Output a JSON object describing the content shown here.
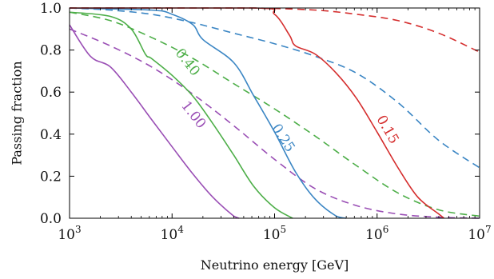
{
  "chart_data": {
    "type": "line",
    "xlabel": "Neutrino energy [GeV]",
    "ylabel": "Passing fraction",
    "xscale": "log",
    "xlim": [
      1000,
      10000000
    ],
    "ylim": [
      0.0,
      1.0
    ],
    "xticks": [
      {
        "value": 1000,
        "base": "10",
        "exp": "3"
      },
      {
        "value": 10000,
        "base": "10",
        "exp": "4"
      },
      {
        "value": 100000,
        "base": "10",
        "exp": "5"
      },
      {
        "value": 1000000,
        "base": "10",
        "exp": "6"
      },
      {
        "value": 10000000,
        "base": "10",
        "exp": "7"
      }
    ],
    "yticks": [
      {
        "value": 0.0,
        "label": "0.0"
      },
      {
        "value": 0.2,
        "label": "0.2"
      },
      {
        "value": 0.4,
        "label": "0.4"
      },
      {
        "value": 0.6,
        "label": "0.6"
      },
      {
        "value": 0.8,
        "label": "0.8"
      },
      {
        "value": 1.0,
        "label": "1.0"
      }
    ],
    "grid": false,
    "legend": "none",
    "series": [
      {
        "color": "#9A4FB5",
        "dash": "solid",
        "curve_label": "1.00",
        "label_x": 16000,
        "label_y": 0.49,
        "label_angle": 52,
        "x": [
          1000,
          1600,
          2500,
          4000,
          6300,
          10000,
          16000,
          25000,
          40000,
          45000
        ],
        "y": [
          0.92,
          0.77,
          0.72,
          0.6,
          0.47,
          0.34,
          0.21,
          0.1,
          0.01,
          0.0
        ]
      },
      {
        "color": "#9A4FB5",
        "dash": "dashed",
        "x": [
          1000,
          2500,
          6300,
          16000,
          40000,
          100000,
          250000,
          630000,
          1600000,
          4000000,
          10000000
        ],
        "y": [
          0.9,
          0.82,
          0.72,
          0.59,
          0.44,
          0.28,
          0.14,
          0.06,
          0.02,
          0.005,
          0.0
        ]
      },
      {
        "color": "#4DAE48",
        "dash": "solid",
        "curve_label": "0.40",
        "label_x": 14000,
        "label_y": 0.74,
        "label_angle": 52,
        "x": [
          1000,
          2500,
          4000,
          5500,
          6300,
          10000,
          16000,
          25000,
          40000,
          63000,
          100000,
          150000
        ],
        "y": [
          0.98,
          0.96,
          0.9,
          0.78,
          0.76,
          0.68,
          0.58,
          0.45,
          0.3,
          0.15,
          0.05,
          0.0
        ]
      },
      {
        "color": "#4DAE48",
        "dash": "dashed",
        "x": [
          1000,
          2500,
          6300,
          16000,
          40000,
          100000,
          250000,
          630000,
          1600000,
          4000000,
          10000000
        ],
        "y": [
          0.98,
          0.94,
          0.86,
          0.76,
          0.64,
          0.52,
          0.39,
          0.25,
          0.12,
          0.04,
          0.01
        ]
      },
      {
        "color": "#3B86C4",
        "dash": "solid",
        "curve_label": "0.25",
        "label_x": 120000,
        "label_y": 0.38,
        "label_angle": 57,
        "x": [
          1000,
          6300,
          10000,
          16000,
          20000,
          40000,
          63000,
          100000,
          160000,
          250000,
          400000,
          500000
        ],
        "y": [
          1.0,
          0.99,
          0.97,
          0.92,
          0.85,
          0.74,
          0.58,
          0.41,
          0.22,
          0.09,
          0.01,
          0.0
        ]
      },
      {
        "color": "#3B86C4",
        "dash": "dashed",
        "x": [
          1000,
          2500,
          6300,
          16000,
          40000,
          100000,
          250000,
          630000,
          1600000,
          4000000,
          10000000
        ],
        "y": [
          1.0,
          0.99,
          0.97,
          0.93,
          0.88,
          0.83,
          0.77,
          0.69,
          0.55,
          0.37,
          0.24
        ]
      },
      {
        "color": "#D52E2E",
        "dash": "solid",
        "curve_label": "0.15",
        "label_x": 1250000,
        "label_y": 0.42,
        "label_angle": 60,
        "x": [
          1000,
          63000,
          100000,
          140000,
          160000,
          250000,
          400000,
          630000,
          1000000,
          1600000,
          2500000,
          4000000,
          4500000
        ],
        "y": [
          1.0,
          1.0,
          0.97,
          0.87,
          0.82,
          0.78,
          0.69,
          0.57,
          0.41,
          0.24,
          0.1,
          0.02,
          0.0
        ]
      },
      {
        "color": "#D52E2E",
        "dash": "dashed",
        "x": [
          1000,
          16000,
          63000,
          250000,
          630000,
          1600000,
          4000000,
          10000000
        ],
        "y": [
          1.0,
          1.0,
          1.0,
          0.99,
          0.97,
          0.94,
          0.88,
          0.79
        ]
      }
    ]
  }
}
